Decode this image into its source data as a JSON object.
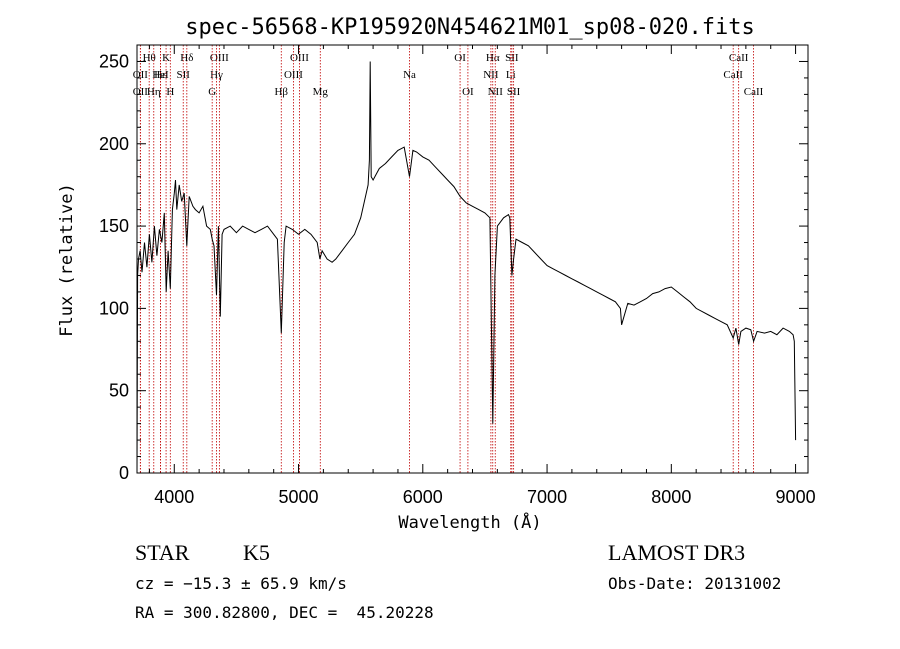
{
  "chart_data": {
    "type": "line",
    "title": "spec-56568-KP195920N454621M01_sp08-020.fits",
    "xlabel": "Wavelength (Å)",
    "ylabel": "Flux (relative)",
    "xlim": [
      3700,
      9100
    ],
    "ylim": [
      0,
      260
    ],
    "xticks": [
      4000,
      5000,
      6000,
      7000,
      8000,
      9000
    ],
    "yticks": [
      0,
      50,
      100,
      150,
      200,
      250
    ],
    "grid": false,
    "series": [
      {
        "values_xy": [
          [
            3700,
            0
          ],
          [
            3705,
            120
          ],
          [
            3712,
            130
          ],
          [
            3725,
            135
          ],
          [
            3740,
            122
          ],
          [
            3760,
            140
          ],
          [
            3780,
            125
          ],
          [
            3800,
            145
          ],
          [
            3820,
            128
          ],
          [
            3840,
            150
          ],
          [
            3860,
            132
          ],
          [
            3880,
            148
          ],
          [
            3900,
            140
          ],
          [
            3920,
            158
          ],
          [
            3935,
            110
          ],
          [
            3950,
            135
          ],
          [
            3968,
            112
          ],
          [
            3985,
            160
          ],
          [
            4000,
            170
          ],
          [
            4010,
            178
          ],
          [
            4020,
            160
          ],
          [
            4040,
            175
          ],
          [
            4060,
            165
          ],
          [
            4080,
            170
          ],
          [
            4101,
            138
          ],
          [
            4120,
            168
          ],
          [
            4150,
            162
          ],
          [
            4170,
            160
          ],
          [
            4200,
            158
          ],
          [
            4230,
            162
          ],
          [
            4260,
            150
          ],
          [
            4290,
            148
          ],
          [
            4305,
            142
          ],
          [
            4320,
            138
          ],
          [
            4340,
            108
          ],
          [
            4355,
            150
          ],
          [
            4370,
            95
          ],
          [
            4385,
            145
          ],
          [
            4400,
            148
          ],
          [
            4450,
            150
          ],
          [
            4500,
            146
          ],
          [
            4550,
            150
          ],
          [
            4600,
            148
          ],
          [
            4650,
            146
          ],
          [
            4700,
            148
          ],
          [
            4750,
            150
          ],
          [
            4800,
            145
          ],
          [
            4830,
            142
          ],
          [
            4861,
            85
          ],
          [
            4885,
            140
          ],
          [
            4900,
            150
          ],
          [
            4950,
            148
          ],
          [
            5000,
            145
          ],
          [
            5050,
            148
          ],
          [
            5100,
            145
          ],
          [
            5150,
            140
          ],
          [
            5172,
            130
          ],
          [
            5190,
            135
          ],
          [
            5230,
            130
          ],
          [
            5270,
            128
          ],
          [
            5300,
            130
          ],
          [
            5350,
            135
          ],
          [
            5400,
            140
          ],
          [
            5450,
            145
          ],
          [
            5500,
            155
          ],
          [
            5530,
            165
          ],
          [
            5560,
            175
          ],
          [
            5570,
            190
          ],
          [
            5577,
            250
          ],
          [
            5585,
            180
          ],
          [
            5600,
            178
          ],
          [
            5650,
            185
          ],
          [
            5700,
            188
          ],
          [
            5750,
            192
          ],
          [
            5800,
            196
          ],
          [
            5850,
            198
          ],
          [
            5893,
            180
          ],
          [
            5920,
            196
          ],
          [
            5950,
            195
          ],
          [
            6000,
            192
          ],
          [
            6050,
            190
          ],
          [
            6100,
            186
          ],
          [
            6150,
            182
          ],
          [
            6200,
            178
          ],
          [
            6250,
            174
          ],
          [
            6300,
            168
          ],
          [
            6350,
            164
          ],
          [
            6400,
            162
          ],
          [
            6450,
            160
          ],
          [
            6500,
            158
          ],
          [
            6540,
            155
          ],
          [
            6563,
            30
          ],
          [
            6580,
            120
          ],
          [
            6600,
            150
          ],
          [
            6650,
            155
          ],
          [
            6690,
            157
          ],
          [
            6700,
            155
          ],
          [
            6717,
            120
          ],
          [
            6731,
            130
          ],
          [
            6750,
            142
          ],
          [
            6800,
            140
          ],
          [
            6850,
            138
          ],
          [
            6900,
            134
          ],
          [
            6950,
            130
          ],
          [
            7000,
            126
          ],
          [
            7050,
            124
          ],
          [
            7100,
            122
          ],
          [
            7150,
            120
          ],
          [
            7200,
            118
          ],
          [
            7250,
            116
          ],
          [
            7300,
            114
          ],
          [
            7350,
            112
          ],
          [
            7400,
            110
          ],
          [
            7450,
            108
          ],
          [
            7500,
            106
          ],
          [
            7550,
            104
          ],
          [
            7590,
            100
          ],
          [
            7600,
            90
          ],
          [
            7650,
            103
          ],
          [
            7700,
            102
          ],
          [
            7750,
            104
          ],
          [
            7800,
            106
          ],
          [
            7850,
            109
          ],
          [
            7900,
            110
          ],
          [
            7950,
            112
          ],
          [
            8000,
            113
          ],
          [
            8050,
            110
          ],
          [
            8100,
            107
          ],
          [
            8150,
            104
          ],
          [
            8200,
            100
          ],
          [
            8250,
            98
          ],
          [
            8300,
            96
          ],
          [
            8350,
            94
          ],
          [
            8400,
            92
          ],
          [
            8450,
            90
          ],
          [
            8498,
            82
          ],
          [
            8520,
            88
          ],
          [
            8542,
            78
          ],
          [
            8560,
            86
          ],
          [
            8600,
            88
          ],
          [
            8640,
            87
          ],
          [
            8662,
            80
          ],
          [
            8690,
            86
          ],
          [
            8750,
            85
          ],
          [
            8800,
            86
          ],
          [
            8850,
            84
          ],
          [
            8900,
            88
          ],
          [
            8950,
            86
          ],
          [
            8980,
            84
          ],
          [
            8990,
            80
          ],
          [
            9000,
            20
          ]
        ]
      }
    ],
    "emission_line_markers": [
      {
        "name": "Hθ",
        "wavelength": 3798,
        "row": 1
      },
      {
        "name": "OII",
        "wavelength": 3727,
        "row": 2
      },
      {
        "name": "OII",
        "wavelength": 3727,
        "row": 3
      },
      {
        "name": "Hε",
        "wavelength": 3889,
        "row": 2
      },
      {
        "name": "Hη",
        "wavelength": 3835,
        "row": 3
      },
      {
        "name": "K",
        "wavelength": 3934,
        "row": 1
      },
      {
        "name": "HeI",
        "wavelength": 3889,
        "row": 2
      },
      {
        "name": "H",
        "wavelength": 3968,
        "row": 3
      },
      {
        "name": "Hδ",
        "wavelength": 4101,
        "row": 1
      },
      {
        "name": "SII",
        "wavelength": 4072,
        "row": 2
      },
      {
        "name": "OIII",
        "wavelength": 4363,
        "row": 1
      },
      {
        "name": "Hγ",
        "wavelength": 4340,
        "row": 2
      },
      {
        "name": "G",
        "wavelength": 4305,
        "row": 3
      },
      {
        "name": "OIII",
        "wavelength": 5007,
        "row": 1
      },
      {
        "name": "OIII",
        "wavelength": 4959,
        "row": 2
      },
      {
        "name": "Hβ",
        "wavelength": 4861,
        "row": 3
      },
      {
        "name": "Mg",
        "wavelength": 5175,
        "row": 3
      },
      {
        "name": "Na",
        "wavelength": 5893,
        "row": 2
      },
      {
        "name": "OI",
        "wavelength": 6300,
        "row": 1
      },
      {
        "name": "OI",
        "wavelength": 6363,
        "row": 3
      },
      {
        "name": "Hα",
        "wavelength": 6563,
        "row": 1
      },
      {
        "name": "NII",
        "wavelength": 6548,
        "row": 2
      },
      {
        "name": "NII",
        "wavelength": 6583,
        "row": 3
      },
      {
        "name": "SII",
        "wavelength": 6717,
        "row": 1
      },
      {
        "name": "Li",
        "wavelength": 6708,
        "row": 2
      },
      {
        "name": "SII",
        "wavelength": 6731,
        "row": 3
      },
      {
        "name": "CaII",
        "wavelength": 8542,
        "row": 1
      },
      {
        "name": "CaII",
        "wavelength": 8498,
        "row": 2
      },
      {
        "name": "CaII",
        "wavelength": 8662,
        "row": 3
      }
    ],
    "colors": {
      "spectrum": "#000000",
      "marker_lines": "#c00000"
    }
  },
  "info": {
    "object_class": "STAR",
    "subclass": "K5",
    "survey": "LAMOST DR3",
    "redshift": "cz = −15.3 ± 65.9 km/s",
    "obs_date": "Obs-Date: 20131002",
    "coords": "RA = 300.82800, DEC =  45.20228"
  }
}
